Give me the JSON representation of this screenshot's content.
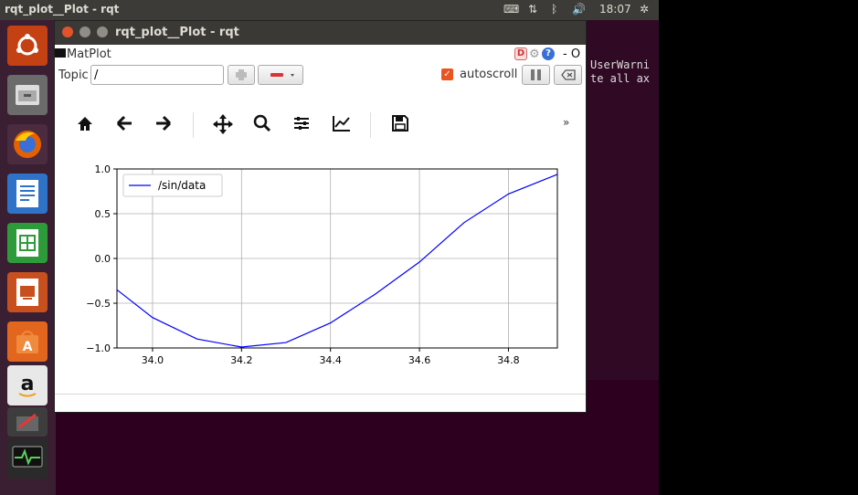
{
  "topbar": {
    "app_title": "rqt_plot__Plot - rqt",
    "time": "18:07"
  },
  "window": {
    "title": "rqt_plot__Plot - rqt",
    "plugin_title": "MatPlot",
    "title_right": "- O"
  },
  "controls": {
    "topic_label": "Topic",
    "topic_value": "/",
    "autoscroll_label": "autoscroll",
    "autoscroll_checked": true
  },
  "toolbar": {
    "more": "»"
  },
  "terminal": {
    "lines": [
      "UserWarni",
      "te all ax"
    ]
  },
  "launcher": {
    "icons": [
      "ubuntu-dash-icon",
      "files-icon",
      "firefox-icon",
      "writer-icon",
      "calc-icon",
      "impress-icon",
      "software-center-icon",
      "amazon-icon",
      "updater-icon",
      "system-monitor-icon"
    ]
  },
  "colors": {
    "series": "#0000ff",
    "accent": "#e95420"
  },
  "chart_data": {
    "type": "line",
    "series": [
      {
        "name": "/sin/data",
        "x": [
          33.92,
          34.0,
          34.1,
          34.2,
          34.3,
          34.4,
          34.5,
          34.6,
          34.7,
          34.8,
          34.91
        ],
        "y": [
          -0.35,
          -0.66,
          -0.9,
          -0.99,
          -0.94,
          -0.72,
          -0.4,
          -0.04,
          0.4,
          0.72,
          0.94
        ]
      }
    ],
    "xlim": [
      33.92,
      34.91
    ],
    "ylim": [
      -1.0,
      1.0
    ],
    "xticks": [
      "34.0",
      "34.2",
      "34.4",
      "34.6",
      "34.8"
    ],
    "yticks": [
      "1.0",
      "0.5",
      "0.0",
      "−0.5",
      "−1.0"
    ],
    "grid": true,
    "legend": "top-left"
  }
}
